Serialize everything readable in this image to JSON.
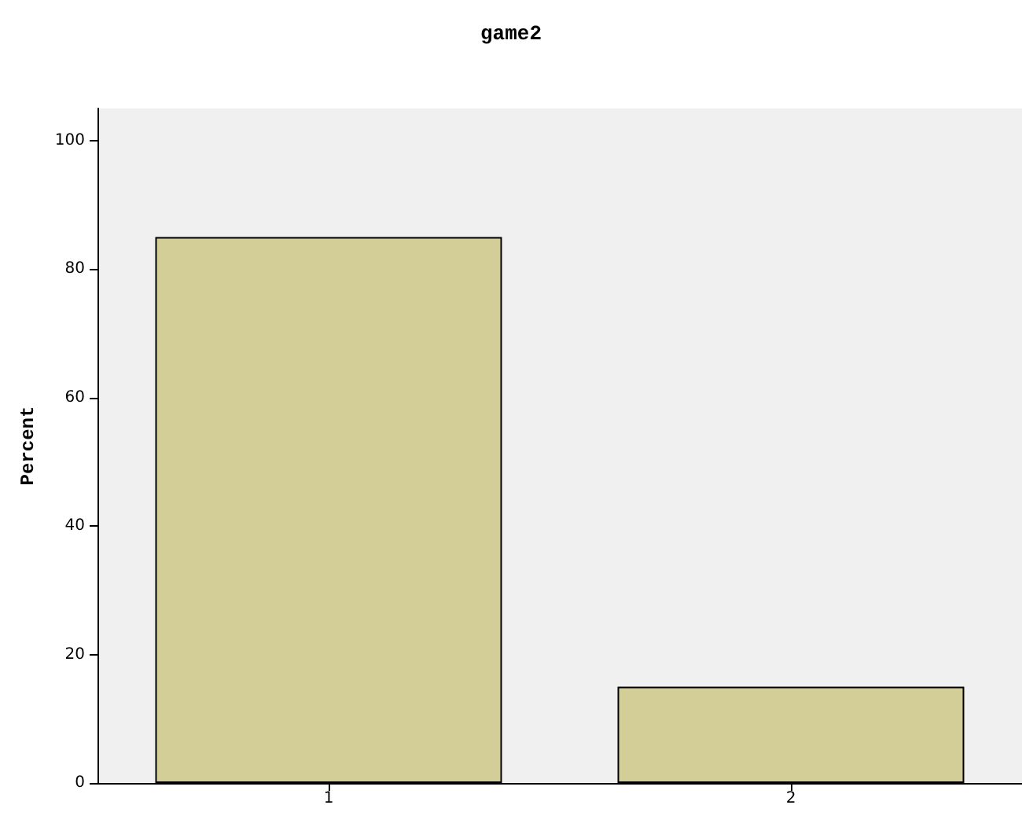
{
  "chart_data": {
    "type": "bar",
    "title": "game2",
    "ylabel": "Percent",
    "categories": [
      "1",
      "2"
    ],
    "values": [
      85,
      15
    ],
    "color": "#d3cd97",
    "ylim": [
      0,
      105
    ],
    "yticks": [
      0,
      20,
      40,
      60,
      80,
      100
    ],
    "grid": false
  }
}
